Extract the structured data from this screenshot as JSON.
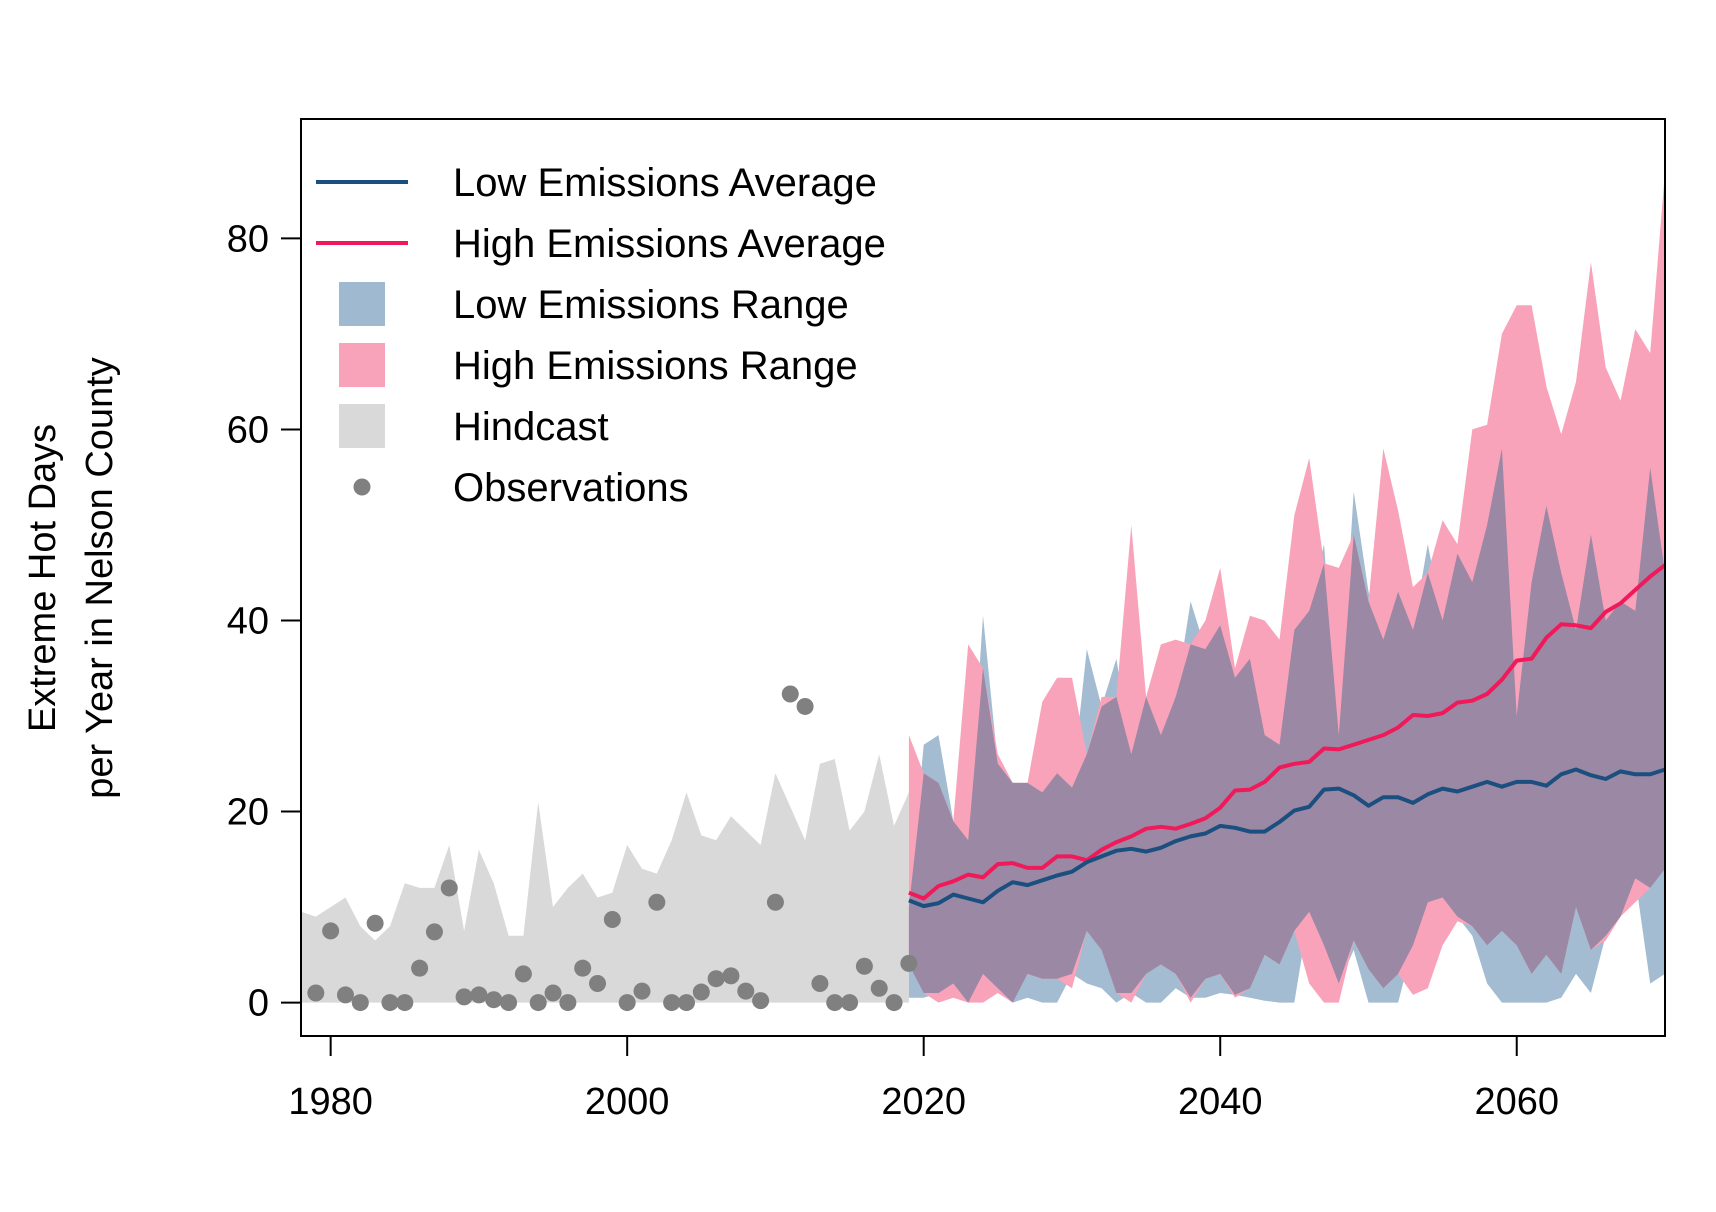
{
  "chart_data": {
    "type": "line",
    "title": "",
    "xlabel": "",
    "ylabel_lines": [
      "Extreme Hot Days",
      "per Year in Nelson County"
    ],
    "xlim": [
      1978,
      2070
    ],
    "ylim": [
      -3.5,
      92.5
    ],
    "x_ticks": [
      1980,
      2000,
      2020,
      2040,
      2060
    ],
    "y_ticks": [
      0,
      20,
      40,
      60,
      80
    ],
    "grid": false,
    "legend_position": "top-left",
    "legend": [
      {
        "key": "low_avg",
        "label": "Low Emissions Average",
        "symbol": "line",
        "color": "#1b4f7f"
      },
      {
        "key": "high_avg",
        "label": "High Emissions Average",
        "symbol": "line",
        "color": "#f0195a"
      },
      {
        "key": "low_range",
        "label": "Low Emissions Range",
        "symbol": "box",
        "color": "#9fbad0"
      },
      {
        "key": "high_range",
        "label": "High Emissions Range",
        "symbol": "box",
        "color": "#f9a3ba"
      },
      {
        "key": "hindcast",
        "label": "Hindcast",
        "symbol": "box",
        "color": "#d9d9d9"
      },
      {
        "key": "obs",
        "label": "Observations",
        "symbol": "point",
        "color": "#808080"
      }
    ],
    "hindcast_range": {
      "x": [
        1978,
        1979,
        1980,
        1981,
        1982,
        1983,
        1984,
        1985,
        1986,
        1987,
        1988,
        1989,
        1990,
        1991,
        1992,
        1993,
        1994,
        1995,
        1996,
        1997,
        1998,
        1999,
        2000,
        2001,
        2002,
        2003,
        2004,
        2005,
        2006,
        2007,
        2008,
        2009,
        2010,
        2011,
        2012,
        2013,
        2014,
        2015,
        2016,
        2017,
        2018,
        2019
      ],
      "upper": [
        9.5,
        9,
        10,
        11,
        8,
        6.5,
        8,
        12.5,
        12,
        12,
        16.5,
        7.5,
        16,
        12.5,
        7,
        7,
        21,
        10,
        12,
        13.5,
        11,
        11.5,
        16.5,
        14,
        13.5,
        17,
        22,
        17.5,
        17,
        19.5,
        18,
        16.5,
        24,
        20.5,
        17,
        25,
        25.5,
        18,
        20,
        26,
        18.5,
        22
      ],
      "lower": [
        0,
        0,
        0,
        0,
        0,
        0,
        0,
        0,
        0,
        0,
        0,
        0,
        0,
        0,
        0,
        0,
        0,
        0,
        0,
        0,
        0,
        0,
        0,
        0,
        0,
        0,
        0,
        0,
        0,
        0,
        0,
        0,
        0,
        0,
        0,
        0,
        0,
        0,
        0,
        0,
        0,
        0
      ]
    },
    "observations": {
      "x": [
        1979,
        1980,
        1981,
        1982,
        1983,
        1984,
        1985,
        1986,
        1987,
        1988,
        1989,
        1990,
        1991,
        1992,
        1993,
        1994,
        1995,
        1996,
        1997,
        1998,
        1999,
        2000,
        2001,
        2002,
        2003,
        2004,
        2005,
        2006,
        2007,
        2008,
        2009,
        2010,
        2011,
        2012,
        2013,
        2014,
        2015,
        2016,
        2017,
        2018,
        2019
      ],
      "y": [
        1,
        7.5,
        0.8,
        0,
        8.3,
        0,
        0,
        3.6,
        7.4,
        12,
        0.6,
        0.8,
        0.3,
        0,
        3,
        0,
        1,
        0,
        3.6,
        2,
        8.7,
        0,
        1.2,
        10.5,
        0,
        0,
        1.1,
        2.5,
        2.8,
        1.2,
        0.2,
        10.5,
        32.3,
        31,
        2,
        0,
        0,
        3.8,
        1.5,
        0,
        4.1
      ]
    },
    "low_range": {
      "x": [
        2019,
        2020,
        2021,
        2022,
        2023,
        2024,
        2025,
        2026,
        2027,
        2028,
        2029,
        2030,
        2031,
        2032,
        2033,
        2034,
        2035,
        2036,
        2037,
        2038,
        2039,
        2040,
        2041,
        2042,
        2043,
        2044,
        2045,
        2046,
        2047,
        2048,
        2049,
        2050,
        2051,
        2052,
        2053,
        2054,
        2055,
        2056,
        2057,
        2058,
        2059,
        2060,
        2061,
        2062,
        2063,
        2064,
        2065,
        2066,
        2067,
        2068,
        2069,
        2070
      ],
      "upper": [
        10,
        27,
        28,
        19,
        17,
        40.5,
        25,
        23,
        23,
        22,
        24,
        22.5,
        37,
        31,
        36,
        26,
        32,
        28,
        32,
        42,
        37,
        39.5,
        34,
        36,
        28,
        27,
        39,
        41,
        48,
        28,
        53.5,
        43,
        38,
        43,
        39,
        48,
        40,
        47,
        44,
        50,
        58,
        30,
        44,
        52,
        45,
        39,
        49,
        40,
        42,
        41,
        56,
        45
      ],
      "lower": [
        0.5,
        0.5,
        1,
        2,
        0,
        3,
        1.5,
        0,
        0.5,
        0,
        0,
        3,
        2,
        1.5,
        0,
        1,
        0,
        0,
        1.5,
        0.5,
        0.5,
        1,
        0.8,
        0.5,
        0.2,
        0,
        0,
        9.5,
        6,
        2,
        5.5,
        0,
        0,
        0,
        6,
        10.5,
        11,
        9,
        7,
        2,
        0,
        0,
        0,
        0,
        0.5,
        3,
        1,
        7,
        9,
        13,
        2,
        3
      ]
    },
    "high_range": {
      "x": [
        2019,
        2020,
        2021,
        2022,
        2023,
        2024,
        2025,
        2026,
        2027,
        2028,
        2029,
        2030,
        2031,
        2032,
        2033,
        2034,
        2035,
        2036,
        2037,
        2038,
        2039,
        2040,
        2041,
        2042,
        2043,
        2044,
        2045,
        2046,
        2047,
        2048,
        2049,
        2050,
        2051,
        2052,
        2053,
        2054,
        2055,
        2056,
        2057,
        2058,
        2059,
        2060,
        2061,
        2062,
        2063,
        2064,
        2065,
        2066,
        2067,
        2068,
        2069,
        2070
      ],
      "upper": [
        28,
        24,
        23,
        19,
        37.5,
        35,
        26,
        23,
        23,
        31.5,
        34,
        34,
        26,
        32,
        32,
        50,
        32,
        37.5,
        38,
        37.5,
        40,
        45.5,
        35,
        40.5,
        40,
        38,
        51,
        57,
        46,
        45.5,
        49,
        42,
        58,
        51.5,
        43.5,
        45,
        50.5,
        48,
        60,
        60.5,
        70,
        73,
        73,
        64.5,
        59.5,
        65,
        77.5,
        66.5,
        63,
        70.5,
        68,
        87
      ],
      "lower": [
        4,
        1,
        0,
        0.5,
        0,
        0,
        1,
        0,
        3,
        2.5,
        2.5,
        1.5,
        7.5,
        5.5,
        1,
        0,
        3,
        4,
        3,
        0,
        2.5,
        3,
        0.5,
        1.5,
        5,
        4,
        7.5,
        2,
        0,
        0,
        6.5,
        3.5,
        1.5,
        3,
        0.8,
        1.5,
        6,
        8.5,
        8,
        6,
        7.5,
        6,
        3,
        5,
        3,
        10,
        5.5,
        6.5,
        9,
        10.5,
        12,
        14
      ]
    },
    "low_avg": {
      "x": [
        2019,
        2020,
        2021,
        2022,
        2023,
        2024,
        2025,
        2026,
        2027,
        2028,
        2029,
        2030,
        2031,
        2032,
        2033,
        2034,
        2035,
        2036,
        2037,
        2038,
        2039,
        2040,
        2041,
        2042,
        2043,
        2044,
        2045,
        2046,
        2047,
        2048,
        2049,
        2050,
        2051,
        2052,
        2053,
        2054,
        2055,
        2056,
        2057,
        2058,
        2059,
        2060,
        2061,
        2062,
        2063,
        2064,
        2065,
        2066,
        2067,
        2068,
        2069,
        2070
      ],
      "y": [
        10.7,
        10.1,
        10.4,
        11.3,
        10.9,
        10.5,
        11.7,
        12.6,
        12.3,
        12.8,
        13.3,
        13.7,
        14.7,
        15.3,
        15.9,
        16.1,
        15.8,
        16.2,
        16.9,
        17.4,
        17.7,
        18.5,
        18.3,
        17.9,
        17.9,
        18.9,
        20.1,
        20.5,
        22.3,
        22.4,
        21.7,
        20.6,
        21.5,
        21.5,
        20.9,
        21.8,
        22.4,
        22.1,
        22.6,
        23.1,
        22.6,
        23.1,
        23.1,
        22.7,
        23.9,
        24.4,
        23.8,
        23.4,
        24.2,
        23.9,
        23.9,
        24.4
      ]
    },
    "high_avg": {
      "x": [
        2019,
        2020,
        2021,
        2022,
        2023,
        2024,
        2025,
        2026,
        2027,
        2028,
        2029,
        2030,
        2031,
        2032,
        2033,
        2034,
        2035,
        2036,
        2037,
        2038,
        2039,
        2040,
        2041,
        2042,
        2043,
        2044,
        2045,
        2046,
        2047,
        2048,
        2049,
        2050,
        2051,
        2052,
        2053,
        2054,
        2055,
        2056,
        2057,
        2058,
        2059,
        2060,
        2061,
        2062,
        2063,
        2064,
        2065,
        2066,
        2067,
        2068,
        2069,
        2070
      ],
      "y": [
        11.5,
        10.9,
        12.2,
        12.7,
        13.4,
        13.1,
        14.5,
        14.6,
        14.1,
        14.1,
        15.3,
        15.3,
        14.9,
        16.0,
        16.8,
        17.4,
        18.2,
        18.4,
        18.2,
        18.7,
        19.3,
        20.4,
        22.2,
        22.3,
        23.1,
        24.6,
        25.0,
        25.2,
        26.6,
        26.5,
        27.0,
        27.5,
        28.0,
        28.8,
        30.1,
        30.0,
        30.3,
        31.4,
        31.6,
        32.3,
        33.8,
        35.8,
        36.0,
        38.2,
        39.6,
        39.5,
        39.2,
        40.9,
        41.8,
        43.2,
        44.6,
        45.8
      ]
    }
  }
}
